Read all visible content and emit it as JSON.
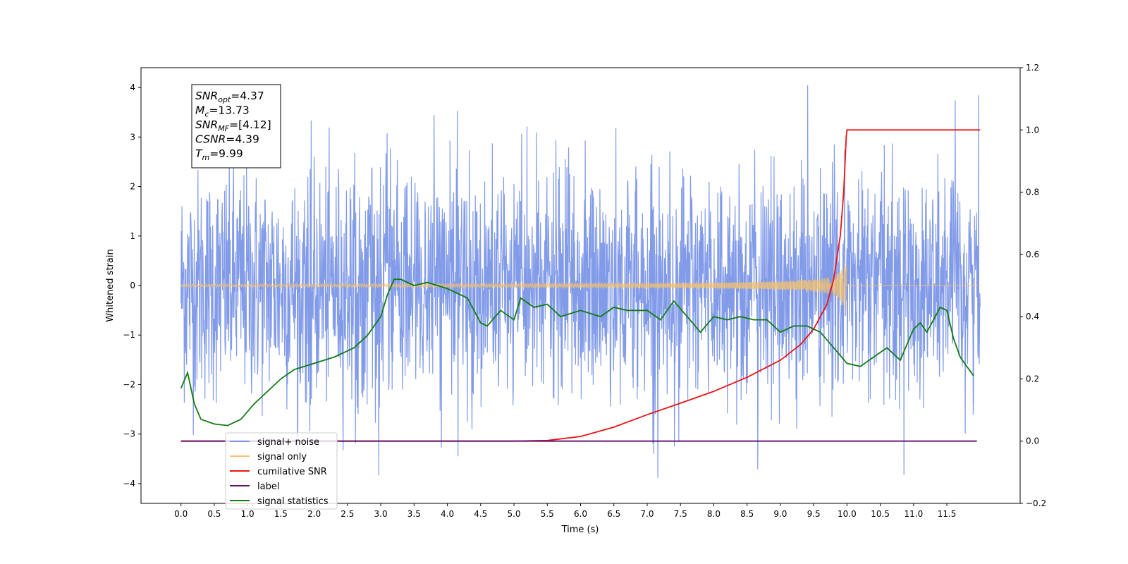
{
  "chart_data": {
    "type": "line",
    "xlabel": "Time (s)",
    "ylabel": "Whitened strain",
    "xlim": [
      -0.6,
      12.6
    ],
    "ylim": [
      -4.4,
      4.4
    ],
    "y2lim": [
      -0.2,
      1.2
    ],
    "xticks": [
      "0.0",
      "0.5",
      "1.0",
      "1.5",
      "2.0",
      "2.5",
      "3.0",
      "3.5",
      "4.0",
      "4.5",
      "5.0",
      "5.5",
      "6.0",
      "6.5",
      "7.0",
      "7.5",
      "8.0",
      "8.5",
      "9.0",
      "9.5",
      "10.0",
      "10.5",
      "11.0",
      "11.5"
    ],
    "yticks": [
      "4",
      "3",
      "2",
      "1",
      "0",
      "−1",
      "−2",
      "−3",
      "−4"
    ],
    "y2ticks": [
      "1.2",
      "1.0",
      "0.8",
      "0.6",
      "0.4",
      "0.2",
      "0.0",
      "−0.2"
    ],
    "grid": false,
    "legend_position": "lower-left",
    "annotation": {
      "lines": [
        {
          "symbol": "SNR",
          "sub": "opt",
          "value": "=4.37"
        },
        {
          "symbol": "M",
          "sub": "c",
          "value": "=13.73"
        },
        {
          "symbol": "SNR",
          "sub": "MF",
          "value": "=[4.12]"
        },
        {
          "symbol": "CSNR",
          "sub": "",
          "value": "=4.39"
        },
        {
          "symbol": "T",
          "sub": "m",
          "value": "=9.99"
        }
      ]
    },
    "series": [
      {
        "name": "signal+ noise",
        "color": "#7b96e8",
        "axis": "left",
        "kind": "noise",
        "amplitude_range": [
          -3.9,
          4.1
        ],
        "x_range": [
          0.0,
          12.0
        ]
      },
      {
        "name": "signal only",
        "color": "#f6c16a",
        "axis": "left",
        "kind": "chirp",
        "merger_time": 9.99,
        "peak_amplitude": 0.75,
        "x_range": [
          0.0,
          12.0
        ]
      },
      {
        "name": "cumilative SNR",
        "color": "#ee1111",
        "axis": "right",
        "x": [
          0.0,
          5.0,
          5.5,
          6.0,
          6.5,
          7.0,
          7.5,
          8.0,
          8.5,
          9.0,
          9.3,
          9.5,
          9.7,
          9.8,
          9.9,
          9.95,
          9.99,
          10.0,
          12.0
        ],
        "y": [
          0.0,
          0.0,
          0.002,
          0.015,
          0.045,
          0.085,
          0.122,
          0.16,
          0.205,
          0.26,
          0.31,
          0.36,
          0.44,
          0.52,
          0.66,
          0.8,
          0.98,
          1.0,
          1.0
        ]
      },
      {
        "name": "label",
        "color": "#5e0f6e",
        "axis": "right",
        "x": [
          0.0,
          11.95
        ],
        "y": [
          0.0,
          0.0
        ]
      },
      {
        "name": "signal statistics",
        "color": "#117a11",
        "axis": "right",
        "x": [
          0.0,
          0.1,
          0.2,
          0.3,
          0.5,
          0.7,
          0.9,
          1.1,
          1.3,
          1.5,
          1.7,
          2.0,
          2.3,
          2.6,
          2.8,
          3.0,
          3.1,
          3.2,
          3.3,
          3.5,
          3.7,
          4.0,
          4.3,
          4.5,
          4.6,
          4.8,
          5.0,
          5.1,
          5.3,
          5.5,
          5.7,
          6.0,
          6.3,
          6.5,
          6.7,
          7.0,
          7.2,
          7.4,
          7.6,
          7.8,
          8.0,
          8.2,
          8.4,
          8.6,
          8.8,
          9.0,
          9.2,
          9.4,
          9.6,
          9.8,
          10.0,
          10.2,
          10.4,
          10.6,
          10.8,
          11.0,
          11.1,
          11.2,
          11.4,
          11.5,
          11.6,
          11.7,
          11.8,
          11.9
        ],
        "y": [
          0.17,
          0.22,
          0.12,
          0.07,
          0.055,
          0.05,
          0.07,
          0.12,
          0.16,
          0.2,
          0.23,
          0.25,
          0.27,
          0.3,
          0.34,
          0.4,
          0.47,
          0.52,
          0.52,
          0.5,
          0.51,
          0.49,
          0.46,
          0.38,
          0.37,
          0.42,
          0.39,
          0.46,
          0.43,
          0.44,
          0.4,
          0.42,
          0.4,
          0.43,
          0.42,
          0.42,
          0.39,
          0.45,
          0.4,
          0.35,
          0.4,
          0.39,
          0.4,
          0.39,
          0.39,
          0.35,
          0.37,
          0.37,
          0.35,
          0.3,
          0.25,
          0.24,
          0.27,
          0.3,
          0.26,
          0.36,
          0.38,
          0.35,
          0.43,
          0.42,
          0.33,
          0.27,
          0.24,
          0.21
        ]
      }
    ]
  }
}
